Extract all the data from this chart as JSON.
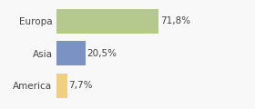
{
  "categories": [
    "Europa",
    "Asia",
    "America"
  ],
  "values": [
    71.8,
    20.5,
    7.7
  ],
  "labels": [
    "71,8%",
    "20,5%",
    "7,7%"
  ],
  "bar_colors": [
    "#b5c98e",
    "#7b93c4",
    "#f0d080"
  ],
  "xlim": [
    0,
    100
  ],
  "background_color": "#f8f8f8",
  "bar_height": 0.75,
  "label_fontsize": 7.5,
  "tick_fontsize": 7.5,
  "grid_color": "#d8d8d8"
}
